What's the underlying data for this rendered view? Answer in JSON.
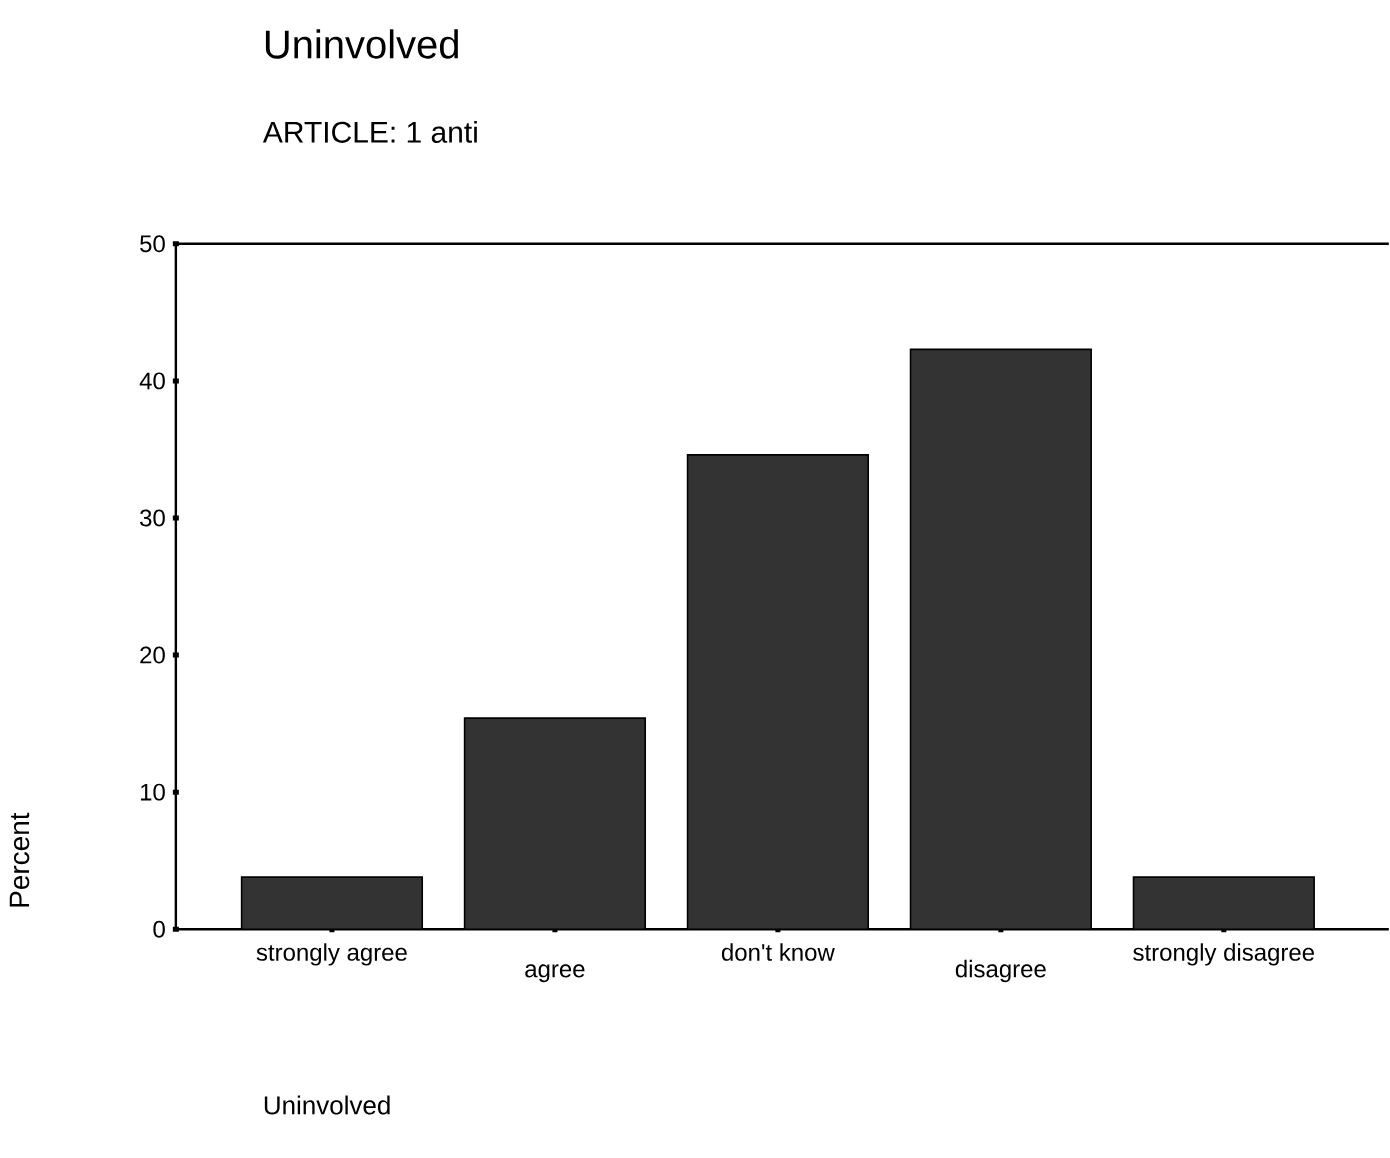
{
  "chart_data": {
    "type": "bar",
    "title": "Uninvolved",
    "subtitle": "ARTICLE: 1 anti",
    "ylabel": "Percent",
    "annotations": [
      "Uninvolved"
    ],
    "categories": [
      "strongly agree",
      "agree",
      "don't know",
      "disagree",
      "strongly disagree"
    ],
    "values": [
      3.8,
      15.4,
      34.6,
      42.3,
      3.8
    ],
    "color": "#333333",
    "ylim": [
      0,
      50
    ],
    "yticks": [
      0,
      10,
      20,
      30,
      40,
      50
    ],
    "grid": false
  }
}
